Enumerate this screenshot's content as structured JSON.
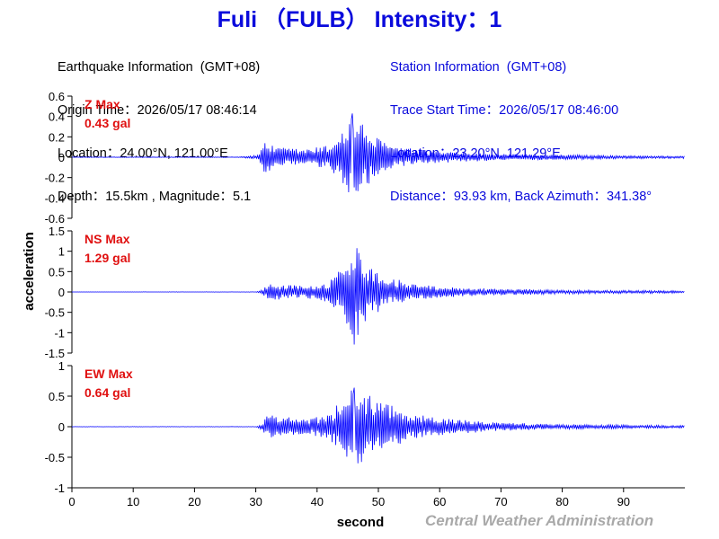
{
  "title": "Fuli （FULB） Intensity：1",
  "earthquake_info": {
    "heading": "Earthquake Information  (GMT+08)",
    "origin_time": "Origin Time：2026/05/17 08:46:14",
    "location": "Location：24.00°N, 121.00°E",
    "depth_magnitude": "Depth：15.5km , Magnitude：5.1"
  },
  "station_info": {
    "heading": "Station Information  (GMT+08)",
    "trace_start": "Trace Start Time：2026/05/17 08:46:00",
    "location": "Location：23.20°N, 121.29°E",
    "distance": "Distance：93.93 km, Back Azimuth：341.38°"
  },
  "footer": "Central Weather Administration",
  "chart_data": {
    "type": "line",
    "xlabel": "second",
    "ylabel": "acceleration",
    "xlim": [
      0,
      100
    ],
    "x_ticks": [
      0,
      10,
      20,
      30,
      40,
      50,
      60,
      70,
      80,
      90
    ],
    "colors": {
      "trace": "#0000ff",
      "max_label": "#e01010",
      "title": "#0a0adc"
    },
    "panels": [
      {
        "component": "Z",
        "max_label": "Z Max",
        "max_value": "0.43 gal",
        "ylim": [
          -0.6,
          0.6
        ],
        "y_ticks": [
          0.6,
          0.4,
          0.2,
          0,
          -0.2,
          -0.4,
          -0.6
        ],
        "y_tick_labels": [
          "0.6",
          "0.4",
          "0.2",
          "0",
          "-0.2",
          "-0.4",
          "-0.6"
        ],
        "peak": 0.43,
        "envelope": [
          [
            0,
            0.003
          ],
          [
            27,
            0.004
          ],
          [
            30.5,
            0.02
          ],
          [
            31.2,
            0.18
          ],
          [
            33,
            0.1
          ],
          [
            38,
            0.08
          ],
          [
            42,
            0.12
          ],
          [
            44.5,
            0.3
          ],
          [
            45.7,
            0.43
          ],
          [
            47,
            0.36
          ],
          [
            49,
            0.22
          ],
          [
            52,
            0.12
          ],
          [
            56,
            0.08
          ],
          [
            62,
            0.05
          ],
          [
            70,
            0.03
          ],
          [
            80,
            0.025
          ],
          [
            90,
            0.015
          ],
          [
            100,
            0.012
          ]
        ]
      },
      {
        "component": "NS",
        "max_label": "NS Max",
        "max_value": "1.29 gal",
        "ylim": [
          -1.5,
          1.5
        ],
        "y_ticks": [
          1.5,
          1,
          0.5,
          0,
          -0.5,
          -1,
          -1.5
        ],
        "y_tick_labels": [
          "1.5",
          "1",
          "0.5",
          "0",
          "-0.5",
          "-1",
          "-1.5"
        ],
        "peak": 1.29,
        "envelope": [
          [
            0,
            0.003
          ],
          [
            30,
            0.004
          ],
          [
            31,
            0.05
          ],
          [
            32,
            0.2
          ],
          [
            38,
            0.15
          ],
          [
            42,
            0.25
          ],
          [
            44,
            0.6
          ],
          [
            46,
            1.29
          ],
          [
            47.2,
            1.0
          ],
          [
            49,
            0.6
          ],
          [
            52,
            0.35
          ],
          [
            56,
            0.2
          ],
          [
            62,
            0.12
          ],
          [
            70,
            0.08
          ],
          [
            80,
            0.05
          ],
          [
            100,
            0.03
          ]
        ]
      },
      {
        "component": "EW",
        "max_label": "EW Max",
        "max_value": "0.64 gal",
        "ylim": [
          -1,
          1
        ],
        "y_ticks": [
          1,
          0.5,
          0,
          -0.5,
          -1
        ],
        "y_tick_labels": [
          "1",
          "0.5",
          "0",
          "-0.5",
          "-1"
        ],
        "peak": 0.64,
        "envelope": [
          [
            0,
            0.003
          ],
          [
            30,
            0.004
          ],
          [
            31,
            0.05
          ],
          [
            32,
            0.2
          ],
          [
            38,
            0.12
          ],
          [
            42,
            0.2
          ],
          [
            44,
            0.45
          ],
          [
            46,
            0.64
          ],
          [
            48,
            0.55
          ],
          [
            50,
            0.5
          ],
          [
            52,
            0.35
          ],
          [
            56,
            0.2
          ],
          [
            62,
            0.12
          ],
          [
            70,
            0.07
          ],
          [
            80,
            0.04
          ],
          [
            100,
            0.02
          ]
        ]
      }
    ]
  }
}
